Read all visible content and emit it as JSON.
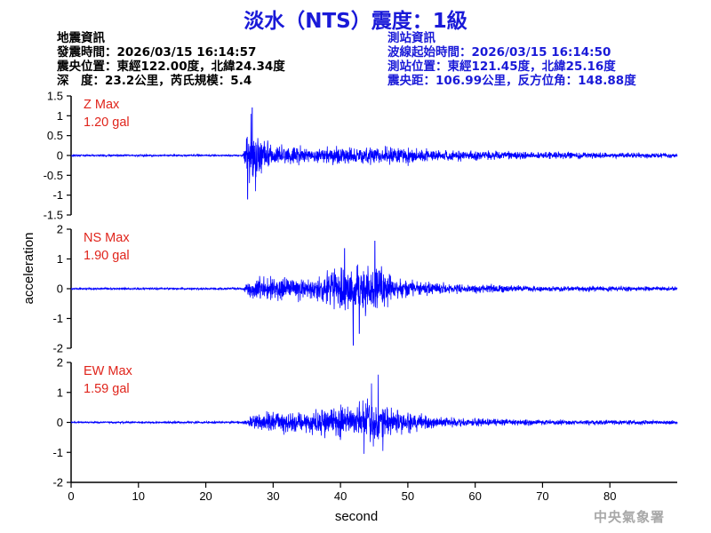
{
  "header": {
    "title": "淡水（NTS）震度：1級"
  },
  "quake_info": {
    "heading": "地震資訊",
    "time": "發震時間：2026/03/15 16:14:57",
    "epicenter": "震央位置：東經122.00度，北緯24.34度",
    "depth": "深　度：23.2公里，芮氏規模：5.4"
  },
  "station_info": {
    "heading": "測站資訊",
    "wave_start": "波線起始時間：2026/03/15 16:14:50",
    "location": "測站位置：東經121.45度，北緯25.16度",
    "distance": "震央距：106.99公里，反方位角：148.88度"
  },
  "credit": "中央氣象署",
  "chart_data": {
    "type": "line",
    "xlabel": "second",
    "ylabel": "acceleration",
    "xlim": [
      0,
      90
    ],
    "xticks": [
      0,
      10,
      20,
      30,
      40,
      50,
      60,
      70,
      80
    ],
    "line_color": "#0000ff",
    "grid": false,
    "panels": [
      {
        "name": "Z",
        "max_label": "Z Max",
        "max_value": "1.20 gal",
        "ylim": [
          -1.5,
          1.5
        ],
        "yticks": [
          1.5,
          1,
          0.5,
          0,
          -0.5,
          -1,
          -1.5
        ],
        "envelope": [
          [
            0,
            0.03
          ],
          [
            25.5,
            0.03
          ],
          [
            26,
            0.75
          ],
          [
            27,
            1.0
          ],
          [
            28,
            0.65
          ],
          [
            30,
            0.35
          ],
          [
            33,
            0.3
          ],
          [
            36,
            0.25
          ],
          [
            40,
            0.3
          ],
          [
            44,
            0.3
          ],
          [
            47,
            0.27
          ],
          [
            50,
            0.28
          ],
          [
            55,
            0.18
          ],
          [
            60,
            0.17
          ],
          [
            70,
            0.12
          ],
          [
            80,
            0.1
          ],
          [
            90,
            0.08
          ]
        ],
        "peaks": [
          [
            26.9,
            1.2
          ],
          [
            26.2,
            -1.1
          ],
          [
            27.4,
            -0.9
          ],
          [
            26.7,
            1.05
          ]
        ]
      },
      {
        "name": "NS",
        "max_label": "NS Max",
        "max_value": "1.90 gal",
        "ylim": [
          -2,
          2
        ],
        "yticks": [
          2,
          1,
          0,
          -1,
          -2
        ],
        "envelope": [
          [
            0,
            0.04
          ],
          [
            25.5,
            0.05
          ],
          [
            26.5,
            0.45
          ],
          [
            30,
            0.6
          ],
          [
            33,
            0.55
          ],
          [
            36,
            0.5
          ],
          [
            38,
            0.7
          ],
          [
            40,
            1.0
          ],
          [
            43,
            1.1
          ],
          [
            46,
            1.0
          ],
          [
            48,
            0.55
          ],
          [
            50,
            0.4
          ],
          [
            55,
            0.25
          ],
          [
            60,
            0.2
          ],
          [
            70,
            0.13
          ],
          [
            80,
            0.12
          ],
          [
            90,
            0.1
          ]
        ],
        "peaks": [
          [
            41.9,
            -1.9
          ],
          [
            45.1,
            1.6
          ],
          [
            42.8,
            -1.5
          ],
          [
            40.6,
            1.35
          ]
        ]
      },
      {
        "name": "EW",
        "max_label": "EW Max",
        "max_value": "1.59 gal",
        "ylim": [
          -2,
          2
        ],
        "yticks": [
          2,
          1,
          0,
          -1,
          -2
        ],
        "envelope": [
          [
            0,
            0.04
          ],
          [
            25.5,
            0.05
          ],
          [
            27,
            0.35
          ],
          [
            30,
            0.45
          ],
          [
            35,
            0.5
          ],
          [
            40,
            0.75
          ],
          [
            44,
            0.9
          ],
          [
            47,
            0.75
          ],
          [
            50,
            0.45
          ],
          [
            55,
            0.25
          ],
          [
            60,
            0.18
          ],
          [
            70,
            0.12
          ],
          [
            80,
            0.1
          ],
          [
            90,
            0.09
          ]
        ],
        "peaks": [
          [
            45.6,
            1.59
          ],
          [
            43.5,
            -1.05
          ],
          [
            44.6,
            1.3
          ],
          [
            46.3,
            -0.95
          ]
        ]
      }
    ]
  }
}
